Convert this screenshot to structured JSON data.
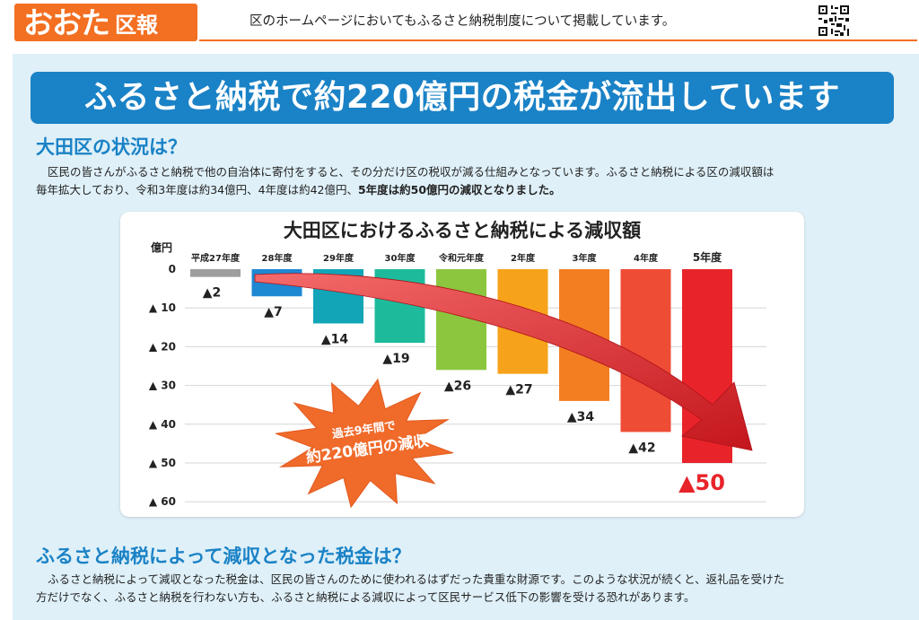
{
  "header": {
    "logo_main": "おおた",
    "logo_sub": "区報",
    "note": "区のホームページにおいてもふるさと納税制度について掲載しています。"
  },
  "banner": "ふるさと納税で約220億円の税金が流出しています",
  "section1": {
    "heading": "大田区の状況は？",
    "line1": "区民の皆さんがふるさと納税で他の自治体に寄付をすると、その分だけ区の税収が減る仕組みとなっています。ふるさと納税による区の減収額は",
    "line2_normal": "毎年拡大しており、令和3年度は約34億円、4年度は約42億円、",
    "line2_bold": "5年度は約50億円の減収となりました。"
  },
  "section2": {
    "heading": "ふるさと納税によって減収となった税金は？",
    "line1": "ふるさと納税によって減収となった税金は、区民の皆さんのために使われるはずだった貴重な財源です。このような状況が続くと、返礼品を受けた",
    "line2": "方だけでなく、ふるさと納税を行わない方も、ふるさと納税による減収によって区民サービス低下の影響を受ける恐れがあります。"
  },
  "chart_data": {
    "type": "bar",
    "title": "大田区におけるふるさと納税による減収額",
    "ylabel": "億円",
    "ylim": [
      0,
      60
    ],
    "yticks": [
      "0",
      "▲ 10",
      "▲ 20",
      "▲ 30",
      "▲ 40",
      "▲ 50",
      "▲ 60"
    ],
    "categories": [
      "平成27年度",
      "28年度",
      "29年度",
      "30年度",
      "令和元年度",
      "2年度",
      "3年度",
      "4年度",
      "5年度"
    ],
    "values": [
      2,
      7,
      14,
      19,
      26,
      27,
      34,
      42,
      50
    ],
    "value_labels": [
      "▲2",
      "▲7",
      "▲14",
      "▲19",
      "▲26",
      "▲27",
      "▲34",
      "▲42",
      "▲50"
    ],
    "colors": [
      "#9e9e9e",
      "#1e88d2",
      "#12a5b8",
      "#1dbb9c",
      "#8cc63f",
      "#f7a21b",
      "#f37e22",
      "#ef4c35",
      "#e8242a"
    ],
    "annotation_line1": "過去9年間で",
    "annotation_line2": "約220億円の減収"
  },
  "colors": {
    "accent_orange": "#f36f21",
    "accent_blue": "#1a82c6",
    "panel_bg": "#dff0f8"
  }
}
